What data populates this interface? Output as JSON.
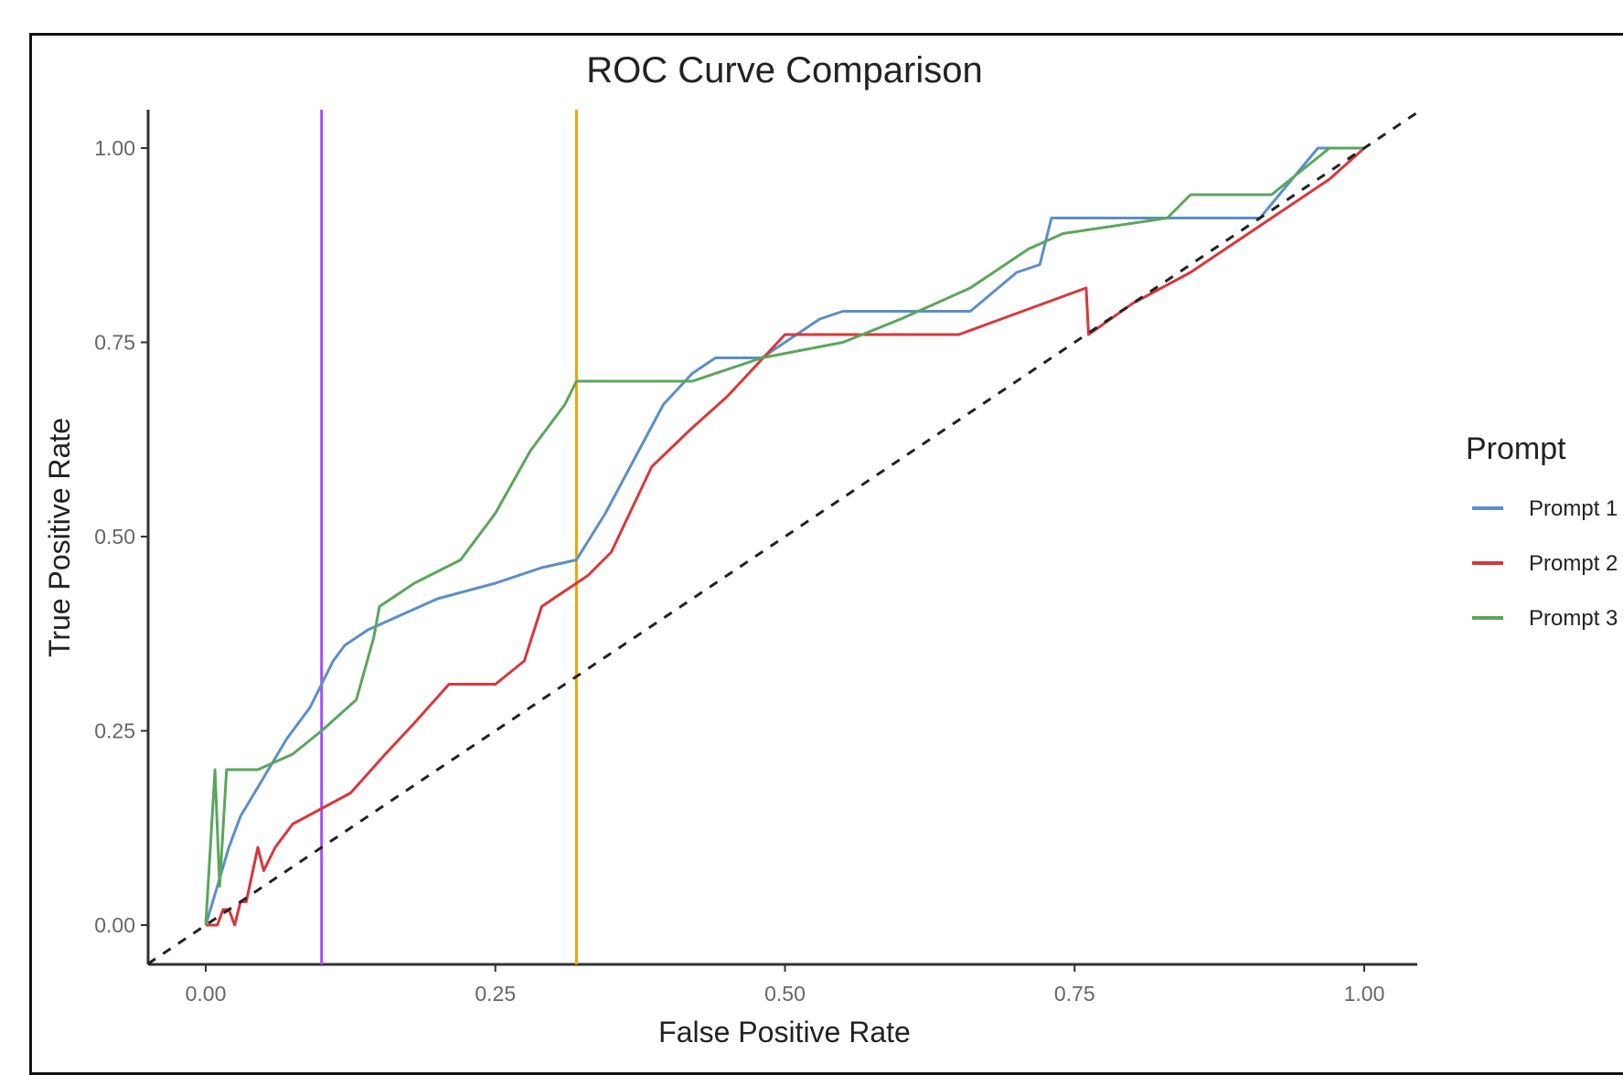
{
  "chart_data": {
    "type": "line",
    "title": "ROC Curve Comparison",
    "xlabel": "False Positive Rate",
    "ylabel": "True Positive Rate",
    "xlim": [
      -0.05,
      1.05
    ],
    "ylim": [
      -0.05,
      1.05
    ],
    "x_ticks": [
      "0.00",
      "0.25",
      "0.50",
      "0.75",
      "1.00"
    ],
    "y_ticks": [
      "0.00",
      "0.25",
      "0.50",
      "0.75",
      "1.00"
    ],
    "tick_values": [
      0,
      0.25,
      0.5,
      0.75,
      1.0
    ],
    "grid": false,
    "legend": {
      "title": "Prompt",
      "position": "right"
    },
    "series": [
      {
        "name": "Prompt 1",
        "color": "#5b8fc7",
        "points": [
          [
            0,
            0
          ],
          [
            0.01,
            0.05
          ],
          [
            0.02,
            0.1
          ],
          [
            0.03,
            0.14
          ],
          [
            0.05,
            0.19
          ],
          [
            0.07,
            0.24
          ],
          [
            0.09,
            0.28
          ],
          [
            0.1,
            0.31
          ],
          [
            0.11,
            0.34
          ],
          [
            0.12,
            0.36
          ],
          [
            0.14,
            0.38
          ],
          [
            0.17,
            0.4
          ],
          [
            0.2,
            0.42
          ],
          [
            0.25,
            0.44
          ],
          [
            0.29,
            0.46
          ],
          [
            0.32,
            0.47
          ],
          [
            0.345,
            0.53
          ],
          [
            0.37,
            0.6
          ],
          [
            0.395,
            0.67
          ],
          [
            0.42,
            0.71
          ],
          [
            0.44,
            0.73
          ],
          [
            0.48,
            0.73
          ],
          [
            0.5,
            0.75
          ],
          [
            0.53,
            0.78
          ],
          [
            0.55,
            0.79
          ],
          [
            0.66,
            0.79
          ],
          [
            0.7,
            0.84
          ],
          [
            0.72,
            0.85
          ],
          [
            0.73,
            0.91
          ],
          [
            0.91,
            0.91
          ],
          [
            0.96,
            1.0
          ],
          [
            1.0,
            1.0
          ]
        ]
      },
      {
        "name": "Prompt 2",
        "color": "#d9373a",
        "points": [
          [
            0,
            0
          ],
          [
            0.01,
            0
          ],
          [
            0.015,
            0.02
          ],
          [
            0.02,
            0.02
          ],
          [
            0.025,
            0
          ],
          [
            0.03,
            0.03
          ],
          [
            0.035,
            0.03
          ],
          [
            0.045,
            0.1
          ],
          [
            0.05,
            0.07
          ],
          [
            0.06,
            0.1
          ],
          [
            0.075,
            0.13
          ],
          [
            0.1,
            0.15
          ],
          [
            0.125,
            0.17
          ],
          [
            0.155,
            0.22
          ],
          [
            0.18,
            0.26
          ],
          [
            0.21,
            0.31
          ],
          [
            0.25,
            0.31
          ],
          [
            0.275,
            0.34
          ],
          [
            0.29,
            0.41
          ],
          [
            0.33,
            0.45
          ],
          [
            0.35,
            0.48
          ],
          [
            0.385,
            0.59
          ],
          [
            0.42,
            0.64
          ],
          [
            0.45,
            0.68
          ],
          [
            0.475,
            0.72
          ],
          [
            0.5,
            0.76
          ],
          [
            0.65,
            0.76
          ],
          [
            0.76,
            0.82
          ],
          [
            0.762,
            0.76
          ],
          [
            0.8,
            0.8
          ],
          [
            0.85,
            0.84
          ],
          [
            0.87,
            0.86
          ],
          [
            0.91,
            0.9
          ],
          [
            0.97,
            0.96
          ],
          [
            1.0,
            1.0
          ]
        ]
      },
      {
        "name": "Prompt 3",
        "color": "#5aa65c",
        "points": [
          [
            0,
            0
          ],
          [
            0.008,
            0.2
          ],
          [
            0.012,
            0.05
          ],
          [
            0.018,
            0.2
          ],
          [
            0.045,
            0.2
          ],
          [
            0.075,
            0.22
          ],
          [
            0.1,
            0.25
          ],
          [
            0.13,
            0.29
          ],
          [
            0.145,
            0.37
          ],
          [
            0.15,
            0.41
          ],
          [
            0.18,
            0.44
          ],
          [
            0.22,
            0.47
          ],
          [
            0.25,
            0.53
          ],
          [
            0.28,
            0.61
          ],
          [
            0.31,
            0.67
          ],
          [
            0.32,
            0.7
          ],
          [
            0.42,
            0.7
          ],
          [
            0.48,
            0.73
          ],
          [
            0.55,
            0.75
          ],
          [
            0.6,
            0.78
          ],
          [
            0.66,
            0.82
          ],
          [
            0.71,
            0.87
          ],
          [
            0.74,
            0.89
          ],
          [
            0.83,
            0.91
          ],
          [
            0.85,
            0.94
          ],
          [
            0.92,
            0.94
          ],
          [
            0.97,
            1.0
          ],
          [
            1.0,
            1.0
          ]
        ]
      }
    ],
    "reference_line": {
      "style": "dashed",
      "color": "#222222",
      "from": [
        -0.05,
        -0.05
      ],
      "to": [
        1.05,
        1.05
      ]
    },
    "threshold_lines": [
      {
        "x": 0.1,
        "color": "#a64dff"
      },
      {
        "x": 0.32,
        "color": "#f0a500"
      }
    ]
  }
}
